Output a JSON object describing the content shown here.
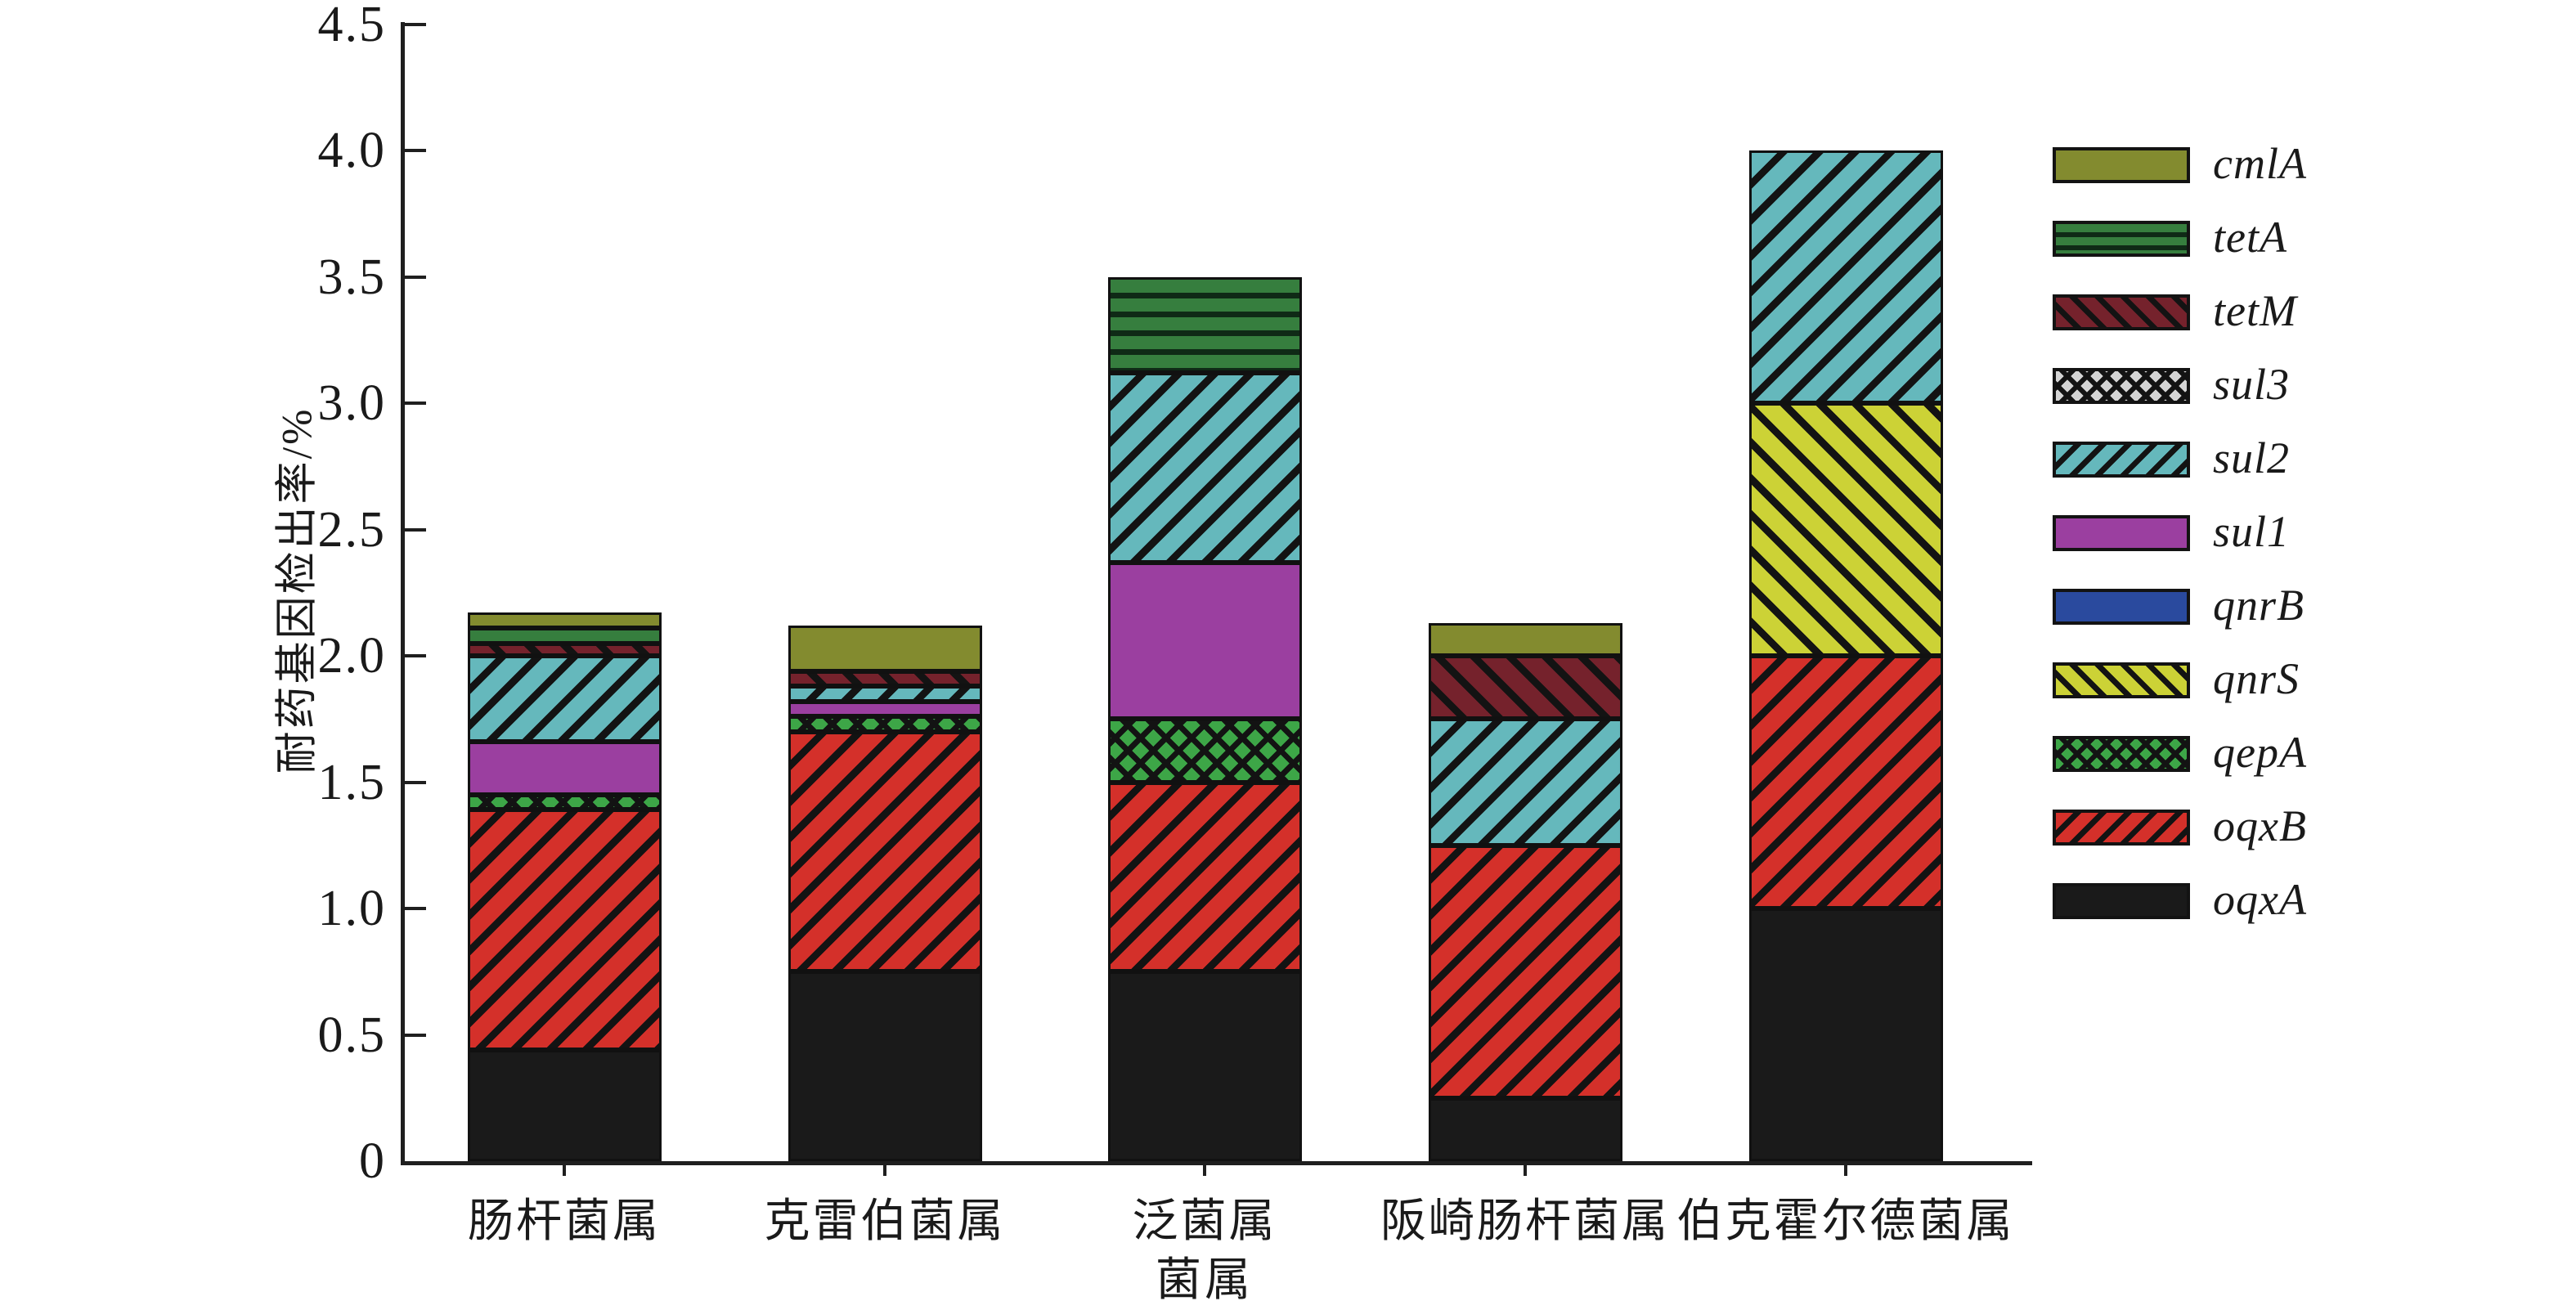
{
  "chart_data": {
    "type": "bar",
    "subtype": "stacked",
    "title": "",
    "ylabel": "耐药基因检出率/%",
    "xlabel": "菌属",
    "ylim": [
      0,
      4.5
    ],
    "ytick_labels": [
      "0",
      "0.5",
      "1.0",
      "1.5",
      "2.0",
      "2.5",
      "3.0",
      "3.5",
      "4.0",
      "4.5"
    ],
    "grid": false,
    "legend_position": "right",
    "categories": [
      "肠杆菌属",
      "克雷伯菌属",
      "泛菌属",
      "阪崎肠杆菌属",
      "伯克霍尔德菌属"
    ],
    "series": [
      {
        "name": "oqxA",
        "color": "#1a1a1a",
        "pattern": "solid",
        "values": [
          0.44,
          0.75,
          0.75,
          0.25,
          1.0
        ]
      },
      {
        "name": "oqxB",
        "color": "#d4302a",
        "pattern": "slash",
        "values": [
          0.95,
          0.95,
          0.75,
          1.0,
          1.0
        ]
      },
      {
        "name": "qepA",
        "color": "#3da647",
        "pattern": "cross",
        "values": [
          0.06,
          0.06,
          0.25,
          0,
          0
        ]
      },
      {
        "name": "qnrS",
        "color": "#ccd236",
        "pattern": "backslash",
        "values": [
          0,
          0,
          0,
          0,
          1.0
        ]
      },
      {
        "name": "qnrB",
        "color": "#2a4a9e",
        "pattern": "solid",
        "values": [
          0,
          0,
          0,
          0,
          0
        ]
      },
      {
        "name": "sul1",
        "color": "#9b3fa0",
        "pattern": "solid",
        "values": [
          0.21,
          0.06,
          0.62,
          0,
          0
        ]
      },
      {
        "name": "sul2",
        "color": "#65b8bc",
        "pattern": "slash",
        "values": [
          0.34,
          0.06,
          0.75,
          0.5,
          1.0
        ]
      },
      {
        "name": "sul3",
        "color": "#d4d4d4",
        "pattern": "cross",
        "values": [
          0,
          0,
          0,
          0,
          0
        ]
      },
      {
        "name": "tetM",
        "color": "#75222c",
        "pattern": "backslash",
        "values": [
          0.05,
          0.06,
          0,
          0.25,
          0
        ]
      },
      {
        "name": "tetA",
        "color": "#367e3e",
        "pattern": "hlines",
        "values": [
          0.06,
          0,
          0.38,
          0,
          0
        ]
      },
      {
        "name": "cmlA",
        "color": "#838b2f",
        "pattern": "solid",
        "values": [
          0.06,
          0.18,
          0,
          0.13,
          0
        ]
      }
    ],
    "legend_order_top_to_bottom": [
      "cmlA",
      "tetA",
      "tetM",
      "sul3",
      "sul2",
      "sul1",
      "qnrB",
      "qnrS",
      "qepA",
      "oqxB",
      "oqxA"
    ],
    "totals": [
      2.17,
      2.12,
      3.5,
      2.13,
      4.0
    ]
  }
}
